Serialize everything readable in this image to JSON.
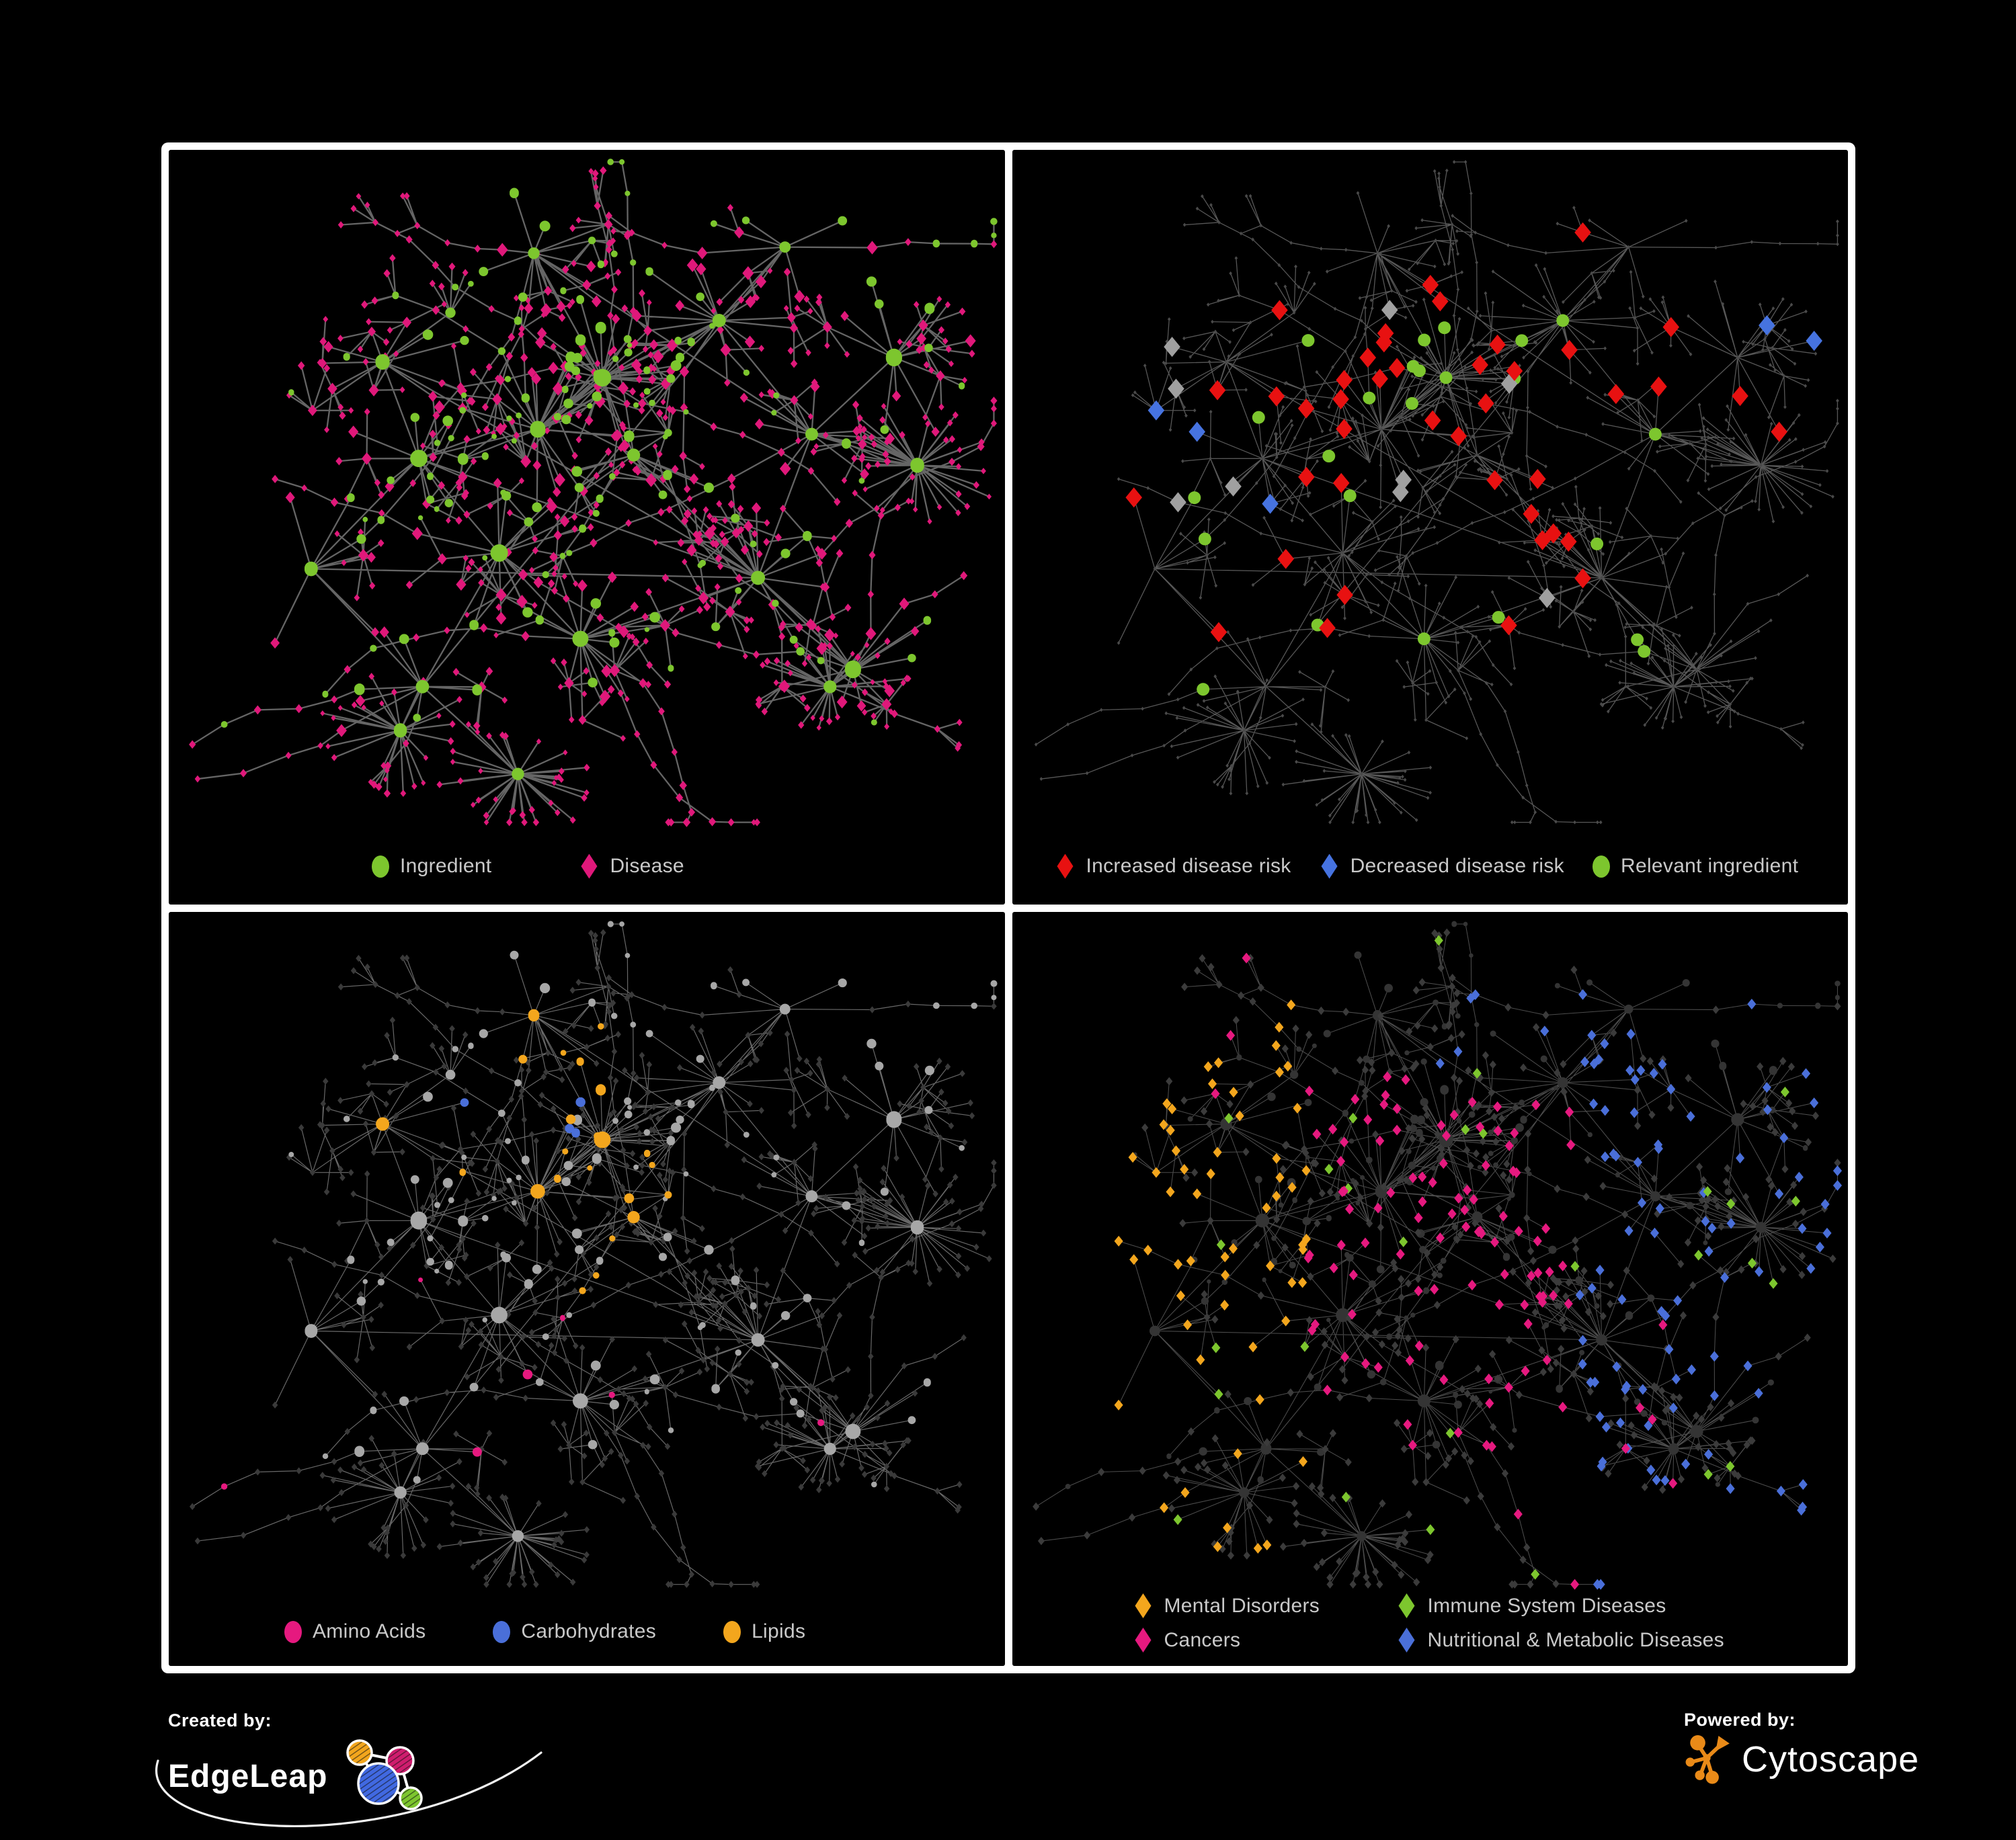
{
  "poster": {
    "background": "#000000",
    "frame_color": "#ffffff",
    "legend_text_color": "#c9c9c9"
  },
  "panels": [
    {
      "name": "ingredient-disease-network",
      "legend": [
        {
          "label": "Ingredient",
          "shape": "circle",
          "color": "#7dc62e"
        },
        {
          "label": "Disease",
          "shape": "diamond",
          "color": "#e0187a"
        }
      ]
    },
    {
      "name": "disease-risk-network",
      "legend": [
        {
          "label": "Increased disease risk",
          "shape": "diamond",
          "color": "#e81111"
        },
        {
          "label": "Decreased disease risk",
          "shape": "diamond",
          "color": "#4673e0"
        },
        {
          "label": "Relevant ingredient",
          "shape": "circle",
          "color": "#7dc62e"
        }
      ]
    },
    {
      "name": "nutrient-class-network",
      "legend": [
        {
          "label": "Amino Acids",
          "shape": "circle",
          "color": "#e6197f"
        },
        {
          "label": "Carbohydrates",
          "shape": "circle",
          "color": "#4a6fd9"
        },
        {
          "label": "Lipids",
          "shape": "circle",
          "color": "#f3a61d"
        }
      ]
    },
    {
      "name": "disease-class-network",
      "legend": [
        {
          "label": "Mental Disorders",
          "shape": "diamond",
          "color": "#f3a61d"
        },
        {
          "label": "Immune System Diseases",
          "shape": "diamond",
          "color": "#7dc62e"
        },
        {
          "label": "Cancers",
          "shape": "diamond",
          "color": "#e6197f"
        },
        {
          "label": "Nutritional & Metabolic Diseases",
          "shape": "diamond",
          "color": "#4a6fd9"
        }
      ]
    }
  ],
  "network_style": {
    "edge_colors": [
      "#6e6e6e",
      "#5c5c5c",
      "#858585",
      "#8a8a8a"
    ],
    "muted_node_color": "#4a4a4a",
    "dim_diamond_color": "#3a3a3a",
    "gray_ingredient_color": "#a7a7a7",
    "neutral_highlight_color": "#a0a0a0",
    "dark_ingredient_color": "#343434",
    "dark_diamond_color": "#3b3b3b"
  },
  "footer": {
    "created_by_label": "Created by:",
    "created_by_name": "EdgeLeap",
    "powered_by_label": "Powered by:",
    "powered_by_name": "Cytoscape",
    "edgeleap_logo_colors": [
      "#f3a61d",
      "#cf1d6e",
      "#4169e1",
      "#7dc62e"
    ],
    "cytoscape_logo_color": "#e98a18"
  }
}
